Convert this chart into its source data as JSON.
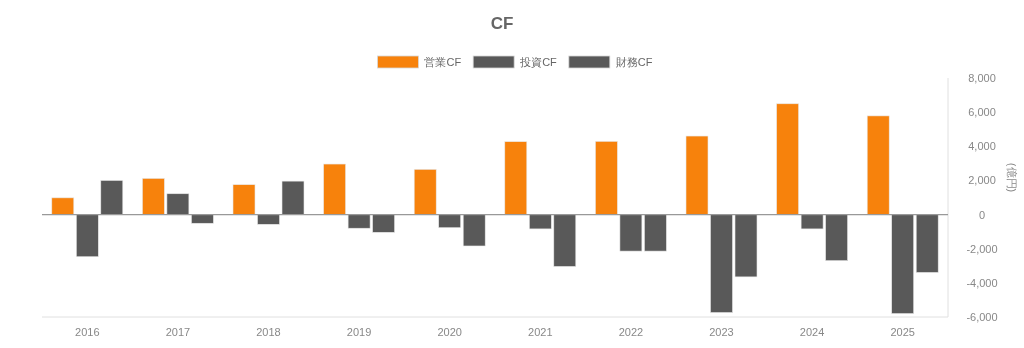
{
  "chart_data": {
    "type": "bar",
    "title": "CF",
    "ylabel": "(億円)",
    "categories": [
      "2016",
      "2017",
      "2018",
      "2019",
      "2020",
      "2021",
      "2022",
      "2023",
      "2024",
      "2025"
    ],
    "series": [
      {
        "name": "営業CF",
        "color": "#f7820c",
        "values": [
          980,
          2120,
          1750,
          2960,
          2650,
          4270,
          4290,
          4600,
          6490,
          5780
        ]
      },
      {
        "name": "投資CF",
        "color": "#595959",
        "values": [
          -2470,
          1220,
          -570,
          -800,
          -770,
          -840,
          -2140,
          -5740,
          -840,
          -5800
        ]
      },
      {
        "name": "財務CF",
        "color": "#595959",
        "values": [
          2000,
          -510,
          1960,
          -1040,
          -1840,
          -3040,
          -2140,
          -3650,
          -2700,
          -3390
        ]
      }
    ],
    "ylim": [
      -6000,
      8000
    ],
    "yticks": [
      {
        "value": -6000,
        "label": "-6,000"
      },
      {
        "value": -4000,
        "label": "-4,000"
      },
      {
        "value": -2000,
        "label": "-2,000"
      },
      0,
      {
        "value": 2000,
        "label": "2,000"
      },
      {
        "value": 4000,
        "label": "4,000"
      },
      {
        "value": 6000,
        "label": "6,000"
      },
      {
        "value": 8000,
        "label": "8,000"
      }
    ],
    "legend": "top"
  }
}
